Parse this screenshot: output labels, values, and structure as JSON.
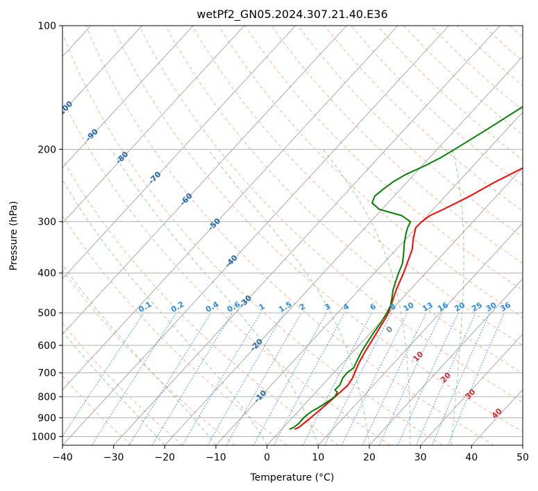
{
  "chart_data": {
    "type": "line",
    "subtype": "skew-t log-p diagram",
    "title": "wetPf2_GN05.2024.307.21.40.E36",
    "xlabel": "Temperature (°C)",
    "ylabel": "Pressure (hPa)",
    "xlim": [
      -40,
      50
    ],
    "ylim": [
      1050,
      100
    ],
    "y_scale": "log",
    "grid": true,
    "x_ticks": [
      -40,
      -30,
      -20,
      -10,
      0,
      10,
      20,
      30,
      40,
      50
    ],
    "y_ticks": [
      100,
      200,
      300,
      400,
      500,
      600,
      700,
      800,
      900,
      1000
    ],
    "isotherm_labels": [
      "-100",
      "-90",
      "-80",
      "-70",
      "-60",
      "-50",
      "-40",
      "-30",
      "-20",
      "-10"
    ],
    "mixing_ratio_labels": [
      "0.1",
      "0.2",
      "0.4",
      "0.6",
      "1",
      "1.5",
      "2",
      "3",
      "4",
      "6",
      "8",
      "10",
      "13",
      "16",
      "20",
      "25",
      "30",
      "36"
    ],
    "moist_adiabat_labels": [
      "0",
      "10",
      "20",
      "30",
      "40"
    ],
    "series": [
      {
        "color": "#ff0000",
        "values": [
          [
            960,
            2.5
          ],
          [
            950,
            3.0
          ],
          [
            900,
            3.6
          ],
          [
            850,
            4.1
          ],
          [
            800,
            4.6
          ],
          [
            750,
            5.0
          ],
          [
            720,
            4.6
          ],
          [
            700,
            4.1
          ],
          [
            660,
            3.1
          ],
          [
            620,
            2.3
          ],
          [
            580,
            1.6
          ],
          [
            550,
            1.0
          ],
          [
            520,
            0.4
          ],
          [
            500,
            -0.1
          ],
          [
            480,
            -0.9
          ],
          [
            460,
            -1.8
          ],
          [
            440,
            -2.7
          ],
          [
            420,
            -3.5
          ],
          [
            400,
            -4.3
          ],
          [
            380,
            -5.3
          ],
          [
            350,
            -6.9
          ],
          [
            330,
            -8.6
          ],
          [
            310,
            -10.1
          ],
          [
            300,
            -10.0
          ],
          [
            290,
            -9.5
          ],
          [
            280,
            -8.0
          ],
          [
            260,
            -5.2
          ],
          [
            240,
            -2.8
          ],
          [
            220,
            0.4
          ],
          [
            200,
            3.5
          ],
          [
            180,
            6.4
          ],
          [
            160,
            9.5
          ],
          [
            140,
            12.9
          ],
          [
            120,
            16.9
          ],
          [
            110,
            19.7
          ],
          [
            100,
            23.4
          ]
        ]
      },
      {
        "color": "#008000",
        "values": [
          [
            960,
            1.5
          ],
          [
            950,
            2.0
          ],
          [
            930,
            2.3
          ],
          [
            900,
            2.2
          ],
          [
            870,
            2.6
          ],
          [
            850,
            3.3
          ],
          [
            820,
            4.1
          ],
          [
            800,
            4.5
          ],
          [
            780,
            4.2
          ],
          [
            770,
            3.3
          ],
          [
            750,
            3.4
          ],
          [
            720,
            2.7
          ],
          [
            700,
            2.6
          ],
          [
            680,
            3.0
          ],
          [
            650,
            2.3
          ],
          [
            620,
            1.6
          ],
          [
            590,
            1.1
          ],
          [
            560,
            0.6
          ],
          [
            530,
            0.2
          ],
          [
            500,
            -0.4
          ],
          [
            480,
            -1.0
          ],
          [
            460,
            -2.1
          ],
          [
            440,
            -3.3
          ],
          [
            420,
            -4.3
          ],
          [
            400,
            -5.3
          ],
          [
            380,
            -6.2
          ],
          [
            360,
            -7.7
          ],
          [
            340,
            -9.4
          ],
          [
            320,
            -11.0
          ],
          [
            310,
            -11.7
          ],
          [
            300,
            -12.2
          ],
          [
            290,
            -15.0
          ],
          [
            280,
            -20.5
          ],
          [
            270,
            -23.1
          ],
          [
            260,
            -23.8
          ],
          [
            250,
            -23.4
          ],
          [
            240,
            -22.8
          ],
          [
            230,
            -21.6
          ],
          [
            220,
            -19.6
          ],
          [
            210,
            -17.9
          ],
          [
            200,
            -16.6
          ],
          [
            180,
            -14.0
          ],
          [
            160,
            -11.3
          ],
          [
            140,
            -8.3
          ],
          [
            130,
            -6.7
          ],
          [
            120,
            -4.6
          ],
          [
            110,
            -2.1
          ],
          [
            100,
            0.8
          ]
        ]
      }
    ]
  }
}
